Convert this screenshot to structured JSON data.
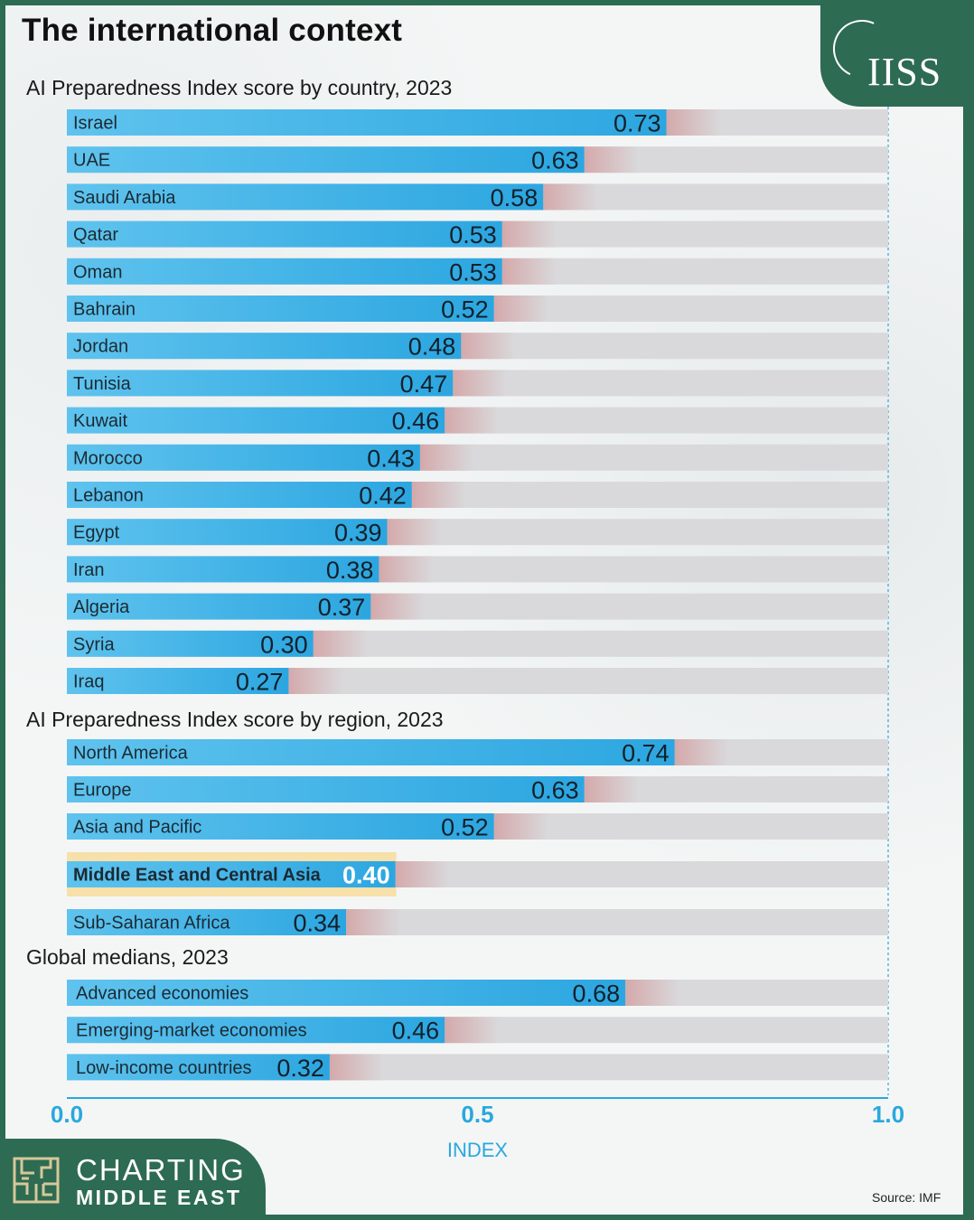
{
  "title": "The international context",
  "logo_text": "IISS",
  "sections": [
    "AI Preparedness Index score by country, 2023",
    "AI Preparedness Index score by region, 2023",
    "Global medians, 2023"
  ],
  "chart_data": {
    "type": "bar",
    "orientation": "horizontal",
    "xlim": [
      0,
      1
    ],
    "xticks": [
      "0.0",
      "0.5",
      "1.0"
    ],
    "xlabel": "INDEX",
    "groups": [
      {
        "title": "AI Preparedness Index score by country, 2023",
        "categories": [
          "Israel",
          "UAE",
          "Saudi Arabia",
          "Qatar",
          "Oman",
          "Bahrain",
          "Jordan",
          "Tunisia",
          "Kuwait",
          "Morocco",
          "Lebanon",
          "Egypt",
          "Iran",
          "Algeria",
          "Syria",
          "Iraq"
        ],
        "values": [
          0.73,
          0.63,
          0.58,
          0.53,
          0.53,
          0.52,
          0.48,
          0.47,
          0.46,
          0.43,
          0.42,
          0.39,
          0.38,
          0.37,
          0.3,
          0.27
        ],
        "labels": [
          "0.73",
          "0.63",
          "0.58",
          "0.53",
          "0.53",
          "0.52",
          "0.48",
          "0.47",
          "0.46",
          "0.43",
          "0.42",
          "0.39",
          "0.38",
          "0.37",
          "0.30",
          "0.27"
        ]
      },
      {
        "title": "AI Preparedness Index score by region, 2023",
        "categories": [
          "North America",
          "Europe",
          "Asia and Pacific",
          "Middle East and Central Asia",
          "Sub-Saharan Africa"
        ],
        "values": [
          0.74,
          0.63,
          0.52,
          0.4,
          0.34
        ],
        "labels": [
          "0.74",
          "0.63",
          "0.52",
          "0.40",
          "0.34"
        ],
        "highlight": "Middle East and Central Asia"
      },
      {
        "title": "Global medians, 2023",
        "categories": [
          "Advanced economies",
          "Emerging-market economies",
          "Low-income countries"
        ],
        "values": [
          0.68,
          0.46,
          0.32
        ],
        "labels": [
          "0.68",
          "0.46",
          "0.32"
        ]
      }
    ],
    "colors": {
      "bar": "#2ca6e0",
      "bar_light": "#5fc3ee",
      "track": "#d9d9db",
      "track_shadow": "#d4a9ab",
      "highlight": "#f7e0a9"
    }
  },
  "branding": {
    "line1": "CHARTING",
    "line2": "MIDDLE EAST"
  },
  "source": "Source: IMF"
}
